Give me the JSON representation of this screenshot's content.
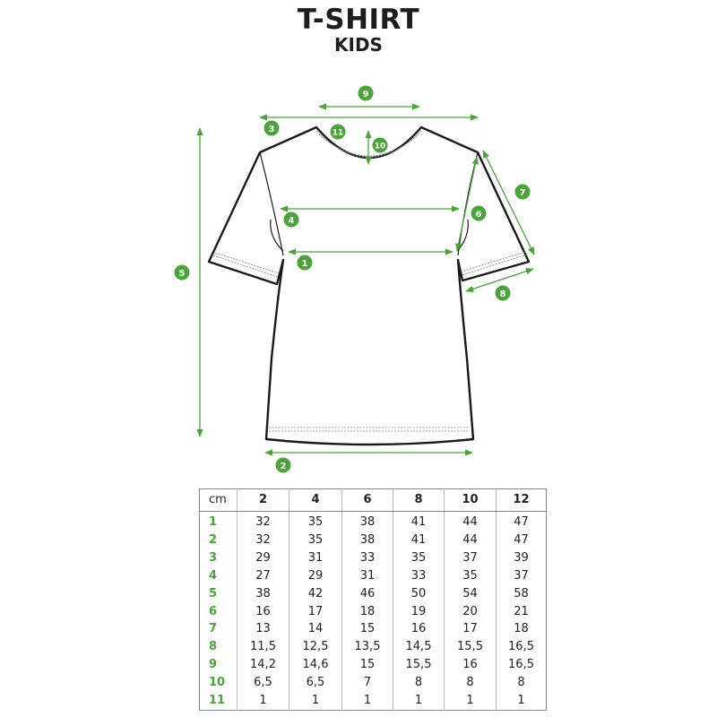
{
  "title": "T-SHIRT",
  "subtitle": "KIDS",
  "colors": {
    "accent": "#4aa43a",
    "outline": "#1a1a1a"
  },
  "diagram": {
    "labels": [
      "1",
      "2",
      "3",
      "4",
      "5",
      "6",
      "7",
      "8",
      "9",
      "10",
      "11"
    ]
  },
  "table": {
    "unit": "cm",
    "sizes": [
      "2",
      "4",
      "6",
      "8",
      "10",
      "12"
    ],
    "rows": [
      {
        "label": "1",
        "values": [
          "32",
          "35",
          "38",
          "41",
          "44",
          "47"
        ]
      },
      {
        "label": "2",
        "values": [
          "32",
          "35",
          "38",
          "41",
          "44",
          "47"
        ]
      },
      {
        "label": "3",
        "values": [
          "29",
          "31",
          "33",
          "35",
          "37",
          "39"
        ]
      },
      {
        "label": "4",
        "values": [
          "27",
          "29",
          "31",
          "33",
          "35",
          "37"
        ]
      },
      {
        "label": "5",
        "values": [
          "38",
          "42",
          "46",
          "50",
          "54",
          "58"
        ]
      },
      {
        "label": "6",
        "values": [
          "16",
          "17",
          "18",
          "19",
          "20",
          "21"
        ]
      },
      {
        "label": "7",
        "values": [
          "13",
          "14",
          "15",
          "16",
          "17",
          "18"
        ]
      },
      {
        "label": "8",
        "values": [
          "11,5",
          "12,5",
          "13,5",
          "14,5",
          "15,5",
          "16,5"
        ]
      },
      {
        "label": "9",
        "values": [
          "14,2",
          "14,6",
          "15",
          "15,5",
          "16",
          "16,5"
        ]
      },
      {
        "label": "10",
        "values": [
          "6,5",
          "6,5",
          "7",
          "8",
          "8",
          "8"
        ]
      },
      {
        "label": "11",
        "values": [
          "1",
          "1",
          "1",
          "1",
          "1",
          "1"
        ]
      }
    ]
  }
}
